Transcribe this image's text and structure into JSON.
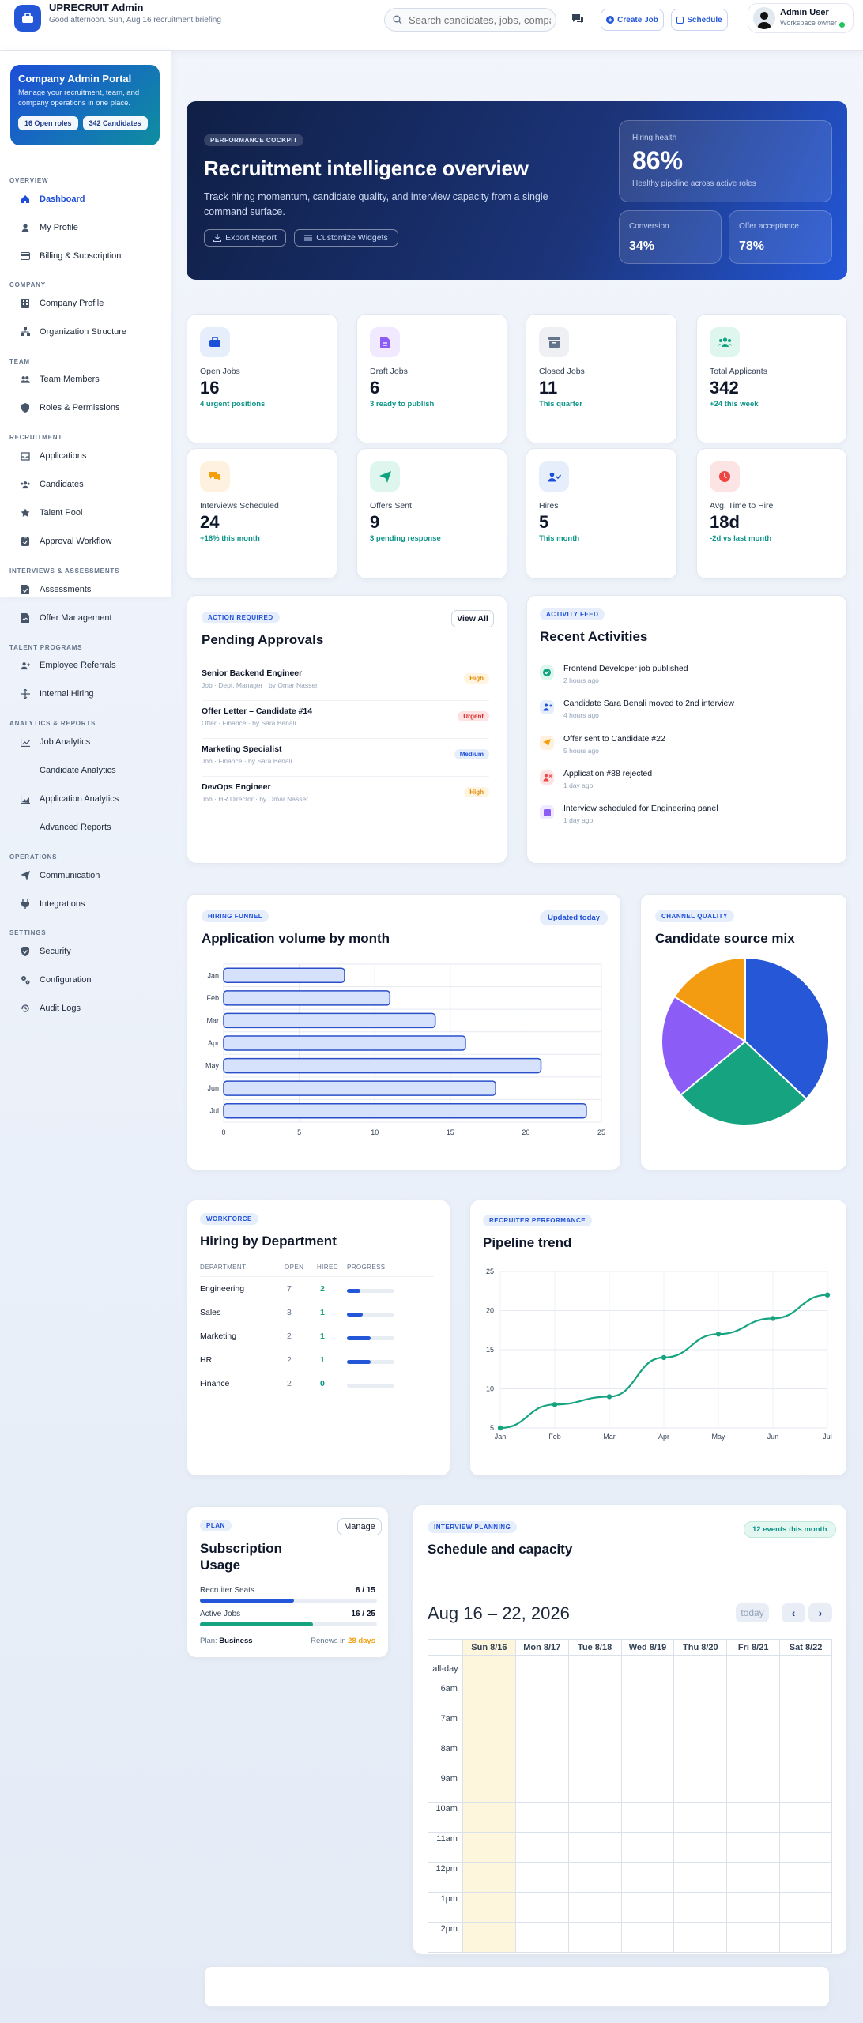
{
  "topbar": {
    "brand": "UPRECRUIT Admin",
    "greeting": "Good afternoon. Sun, Aug 16 recruitment briefing",
    "search_placeholder": "Search candidates, jobs, compa",
    "create_job": "Create Job",
    "schedule": "Schedule",
    "user_name": "Admin User",
    "user_role": "Workspace owner"
  },
  "sidebar": {
    "portal_title": "Company Admin Portal",
    "portal_desc": "Manage your recruitment, team, and company operations in one place.",
    "badge_roles": "16 Open roles",
    "badge_candidates": "342 Candidates",
    "sections": {
      "overview": "OVERVIEW",
      "company": "COMPANY",
      "team": "TEAM",
      "recruitment": "RECRUITMENT",
      "interviews": "INTERVIEWS & ASSESSMENTS",
      "talent": "TALENT PROGRAMS",
      "analytics": "ANALYTICS & REPORTS",
      "operations": "OPERATIONS",
      "settings": "SETTINGS"
    },
    "items": [
      "Dashboard",
      "My Profile",
      "Billing & Subscription",
      "Company Profile",
      "Organization Structure",
      "Team Members",
      "Roles & Permissions",
      "Applications",
      "Candidates",
      "Talent Pool",
      "Approval Workflow",
      "Assessments",
      "Offer Management",
      "Employee Referrals",
      "Internal Hiring",
      "Job Analytics",
      "Candidate Analytics",
      "Application Analytics",
      "Advanced Reports",
      "Communication",
      "Integrations",
      "Security",
      "Configuration",
      "Audit Logs"
    ]
  },
  "hero": {
    "tag": "PERFORMANCE COCKPIT",
    "title": "Recruitment intelligence overview",
    "desc": "Track hiring momentum, candidate quality, and interview capacity from a single command surface.",
    "export": "Export Report",
    "customize": "Customize Widgets",
    "health_label": "Hiring health",
    "health_value": "86%",
    "health_note": "Healthy pipeline across active roles",
    "conversion_label": "Conversion",
    "conversion_value": "34%",
    "offer_label": "Offer acceptance",
    "offer_value": "78%"
  },
  "stats": [
    {
      "label": "Open Jobs",
      "value": "16",
      "note": "4 urgent positions"
    },
    {
      "label": "Draft Jobs",
      "value": "6",
      "note": "3 ready to publish"
    },
    {
      "label": "Closed Jobs",
      "value": "11",
      "note": "This quarter"
    },
    {
      "label": "Total Applicants",
      "value": "342",
      "note": "+24 this week"
    },
    {
      "label": "Interviews Scheduled",
      "value": "24",
      "note": "+18% this month"
    },
    {
      "label": "Offers Sent",
      "value": "9",
      "note": "3 pending response"
    },
    {
      "label": "Hires",
      "value": "5",
      "note": "This month"
    },
    {
      "label": "Avg. Time to Hire",
      "value": "18d",
      "note": "-2d vs last month"
    }
  ],
  "approvals": {
    "tag": "ACTION REQUIRED",
    "title": "Pending Approvals",
    "view_all": "View All",
    "items": [
      {
        "title": "Senior Backend Engineer",
        "sub": "Job · Dept. Manager · by Omar Nasser",
        "priority": "High"
      },
      {
        "title": "Offer Letter – Candidate #14",
        "sub": "Offer · Finance · by Sara Benali",
        "priority": "Urgent"
      },
      {
        "title": "Marketing Specialist",
        "sub": "Job · Finance · by Sara Benali",
        "priority": "Medium"
      },
      {
        "title": "DevOps Engineer",
        "sub": "Job · HR Director · by Omar Nasser",
        "priority": "High"
      }
    ]
  },
  "activities": {
    "tag": "ACTIVITY FEED",
    "title": "Recent Activities",
    "items": [
      {
        "text": "Frontend Developer job published",
        "time": "2 hours ago"
      },
      {
        "text": "Candidate Sara Benali moved to 2nd interview",
        "time": "4 hours ago"
      },
      {
        "text": "Offer sent to Candidate #22",
        "time": "5 hours ago"
      },
      {
        "text": "Application #88 rejected",
        "time": "1 day ago"
      },
      {
        "text": "Interview scheduled for Engineering panel",
        "time": "1 day ago"
      }
    ]
  },
  "volume": {
    "tag": "HIRING FUNNEL",
    "title": "Application volume by month",
    "updated": "Updated today"
  },
  "source": {
    "tag": "CHANNEL QUALITY",
    "title": "Candidate source mix"
  },
  "departments": {
    "tag": "WORKFORCE",
    "title": "Hiring by Department",
    "headers": [
      "DEPARTMENT",
      "OPEN",
      "HIRED",
      "PROGRESS"
    ],
    "rows": [
      {
        "name": "Engineering",
        "open": "7",
        "hired": "2",
        "progress": 0.29
      },
      {
        "name": "Sales",
        "open": "3",
        "hired": "1",
        "progress": 0.33
      },
      {
        "name": "Marketing",
        "open": "2",
        "hired": "1",
        "progress": 0.5
      },
      {
        "name": "HR",
        "open": "2",
        "hired": "1",
        "progress": 0.5
      },
      {
        "name": "Finance",
        "open": "2",
        "hired": "0",
        "progress": 0
      }
    ]
  },
  "trend": {
    "tag": "RECRUITER PERFORMANCE",
    "title": "Pipeline trend"
  },
  "subscription": {
    "tag": "PLAN",
    "title": "Subscription Usage",
    "manage": "Manage",
    "seats_label": "Recruiter Seats",
    "seats_value": "8 / 15",
    "seats_ratio": 0.53,
    "jobs_label": "Active Jobs",
    "jobs_value": "16 / 25",
    "jobs_ratio": 0.64,
    "plan_label": "Plan:",
    "plan_value": "Business",
    "renews_label": "Renews in",
    "renews_value": "28 days"
  },
  "calendar": {
    "tag": "INTERVIEW PLANNING",
    "title": "Schedule and capacity",
    "events": "12 events this month",
    "range": "Aug 16 – 22, 2026",
    "today": "today",
    "days": [
      "Sun 8/16",
      "Mon 8/17",
      "Tue 8/18",
      "Wed 8/19",
      "Thu 8/20",
      "Fri 8/21",
      "Sat 8/22"
    ],
    "allday": "all-day",
    "times": [
      "6am",
      "7am",
      "8am",
      "9am",
      "10am",
      "11am",
      "12pm",
      "1pm",
      "2pm"
    ]
  },
  "chart_data": [
    {
      "type": "bar",
      "orientation": "horizontal",
      "categories": [
        "Jan",
        "Feb",
        "Mar",
        "Apr",
        "May",
        "Jun",
        "Jul"
      ],
      "values": [
        8,
        11,
        14,
        16,
        21,
        18,
        24
      ],
      "xlim": [
        0,
        25
      ],
      "xticks": [
        0,
        5,
        10,
        15,
        20,
        25
      ],
      "grid": true,
      "color": "#d6e2fb",
      "stroke": "#2a4fc9"
    },
    {
      "type": "pie",
      "values": [
        37,
        27,
        20,
        16
      ],
      "colors": [
        "#2557d6",
        "#16a37f",
        "#8b5cf6",
        "#f39c12"
      ]
    },
    {
      "type": "line",
      "x": [
        "Jan",
        "Feb",
        "Mar",
        "Apr",
        "May",
        "Jun",
        "Jul"
      ],
      "values": [
        5,
        8,
        9,
        14,
        17,
        19,
        22
      ],
      "ylim": [
        5,
        25
      ],
      "yticks": [
        5,
        10,
        15,
        20,
        25
      ],
      "grid": true,
      "color": "#16a37f"
    }
  ]
}
